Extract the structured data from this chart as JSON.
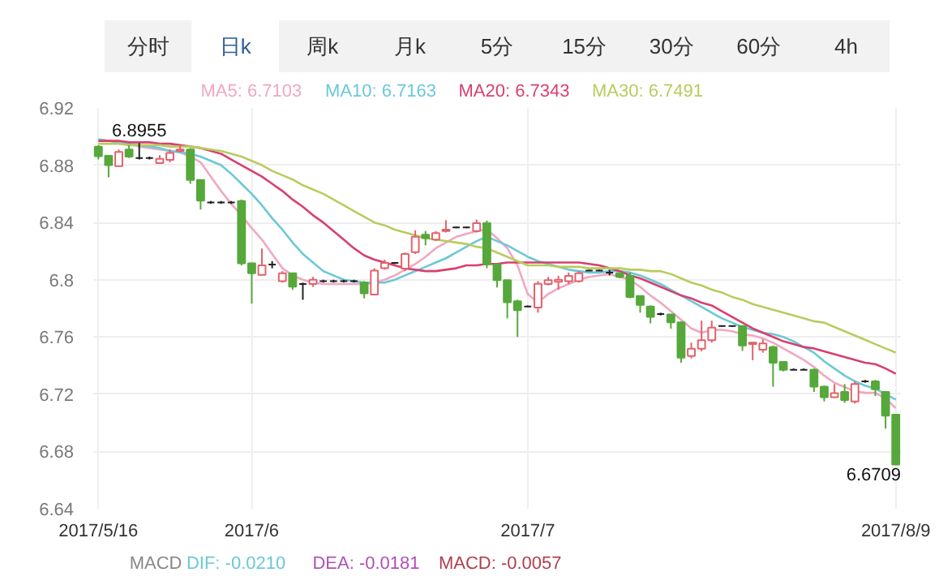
{
  "chart_data": {
    "type": "candlestick",
    "categories": [
      "2017/5/16",
      null,
      null,
      null,
      null,
      null,
      null,
      null,
      null,
      null,
      null,
      null,
      null,
      null,
      null,
      "2017/6",
      null,
      null,
      null,
      null,
      null,
      null,
      null,
      null,
      null,
      null,
      null,
      null,
      null,
      null,
      null,
      null,
      null,
      null,
      null,
      null,
      null,
      null,
      null,
      null,
      null,
      null,
      "2017/7",
      null,
      null,
      null,
      null,
      null,
      null,
      null,
      null,
      null,
      null,
      null,
      null,
      null,
      null,
      null,
      null,
      null,
      null,
      null,
      null,
      null,
      null,
      null,
      null,
      null,
      null,
      null,
      null,
      null,
      null,
      null,
      null,
      null,
      null,
      null,
      "2017/8/9"
    ],
    "ohlc": [
      [
        6.8929,
        6.894,
        6.884,
        6.8863
      ],
      [
        6.8866,
        6.887,
        6.8715,
        6.88
      ],
      [
        6.8793,
        6.891,
        6.879,
        6.8892
      ],
      [
        6.891,
        6.894,
        6.885,
        6.886
      ],
      [
        6.885,
        6.8955,
        6.884,
        6.885
      ],
      [
        6.885,
        6.886,
        6.884,
        6.885
      ],
      [
        6.8815,
        6.887,
        6.881,
        6.8844
      ],
      [
        6.8837,
        6.891,
        6.882,
        6.8885
      ],
      [
        6.89,
        6.894,
        6.889,
        6.891
      ],
      [
        6.891,
        6.892,
        6.867,
        6.8697
      ],
      [
        6.8697,
        6.87,
        6.849,
        6.8553
      ],
      [
        6.854,
        6.855,
        6.853,
        6.854
      ],
      [
        6.854,
        6.855,
        6.853,
        6.854
      ],
      [
        6.854,
        6.855,
        6.853,
        6.854
      ],
      [
        6.855,
        6.856,
        6.81,
        6.8115
      ],
      [
        6.8115,
        6.812,
        6.7833,
        6.8045
      ],
      [
        6.8034,
        6.8218,
        6.803,
        6.81
      ],
      [
        6.8106,
        6.813,
        6.808,
        6.8106
      ],
      [
        6.799,
        6.806,
        6.798,
        6.8045
      ],
      [
        6.8045,
        6.805,
        6.793,
        6.7952
      ],
      [
        6.797,
        6.798,
        6.786,
        6.797
      ],
      [
        6.797,
        6.802,
        6.795,
        6.8
      ],
      [
        6.799,
        6.8,
        6.798,
        6.799
      ],
      [
        6.799,
        6.8,
        6.798,
        6.799
      ],
      [
        6.799,
        6.8,
        6.798,
        6.799
      ],
      [
        6.799,
        6.8,
        6.798,
        6.799
      ],
      [
        6.798,
        6.799,
        6.787,
        6.7905
      ],
      [
        6.7897,
        6.808,
        6.789,
        6.8063
      ],
      [
        6.808,
        6.814,
        6.807,
        6.8117
      ],
      [
        6.8118,
        6.812,
        6.811,
        6.8118
      ],
      [
        6.8078,
        6.819,
        6.806,
        6.818
      ],
      [
        6.8193,
        6.8345,
        6.818,
        6.83
      ],
      [
        6.8315,
        6.834,
        6.824,
        6.829
      ],
      [
        6.828,
        6.834,
        6.827,
        6.8326
      ],
      [
        6.834,
        6.8416,
        6.833,
        6.835
      ],
      [
        6.8365,
        6.837,
        6.836,
        6.8365
      ],
      [
        6.8365,
        6.837,
        6.836,
        6.8365
      ],
      [
        6.834,
        6.842,
        6.833,
        6.8395
      ],
      [
        6.8395,
        6.8413,
        6.808,
        6.8108
      ],
      [
        6.8108,
        6.811,
        6.7946,
        6.7997
      ],
      [
        6.7997,
        6.8,
        6.773,
        6.7842
      ],
      [
        6.785,
        6.786,
        6.76,
        6.7787
      ],
      [
        6.7813,
        6.782,
        6.781,
        6.7813
      ],
      [
        6.7806,
        6.799,
        6.777,
        6.7971
      ],
      [
        6.797,
        6.802,
        6.796,
        6.7997
      ],
      [
        6.7985,
        6.8027,
        6.793,
        6.8
      ],
      [
        6.799,
        6.805,
        6.797,
        6.8027
      ],
      [
        6.799,
        6.806,
        6.798,
        6.8045
      ],
      [
        6.8063,
        6.807,
        6.806,
        6.8063
      ],
      [
        6.8063,
        6.807,
        6.806,
        6.8063
      ],
      [
        6.805,
        6.807,
        6.803,
        6.805
      ],
      [
        6.8045,
        6.805,
        6.801,
        6.802
      ],
      [
        6.8027,
        6.805,
        6.787,
        6.788
      ],
      [
        6.7887,
        6.789,
        6.777,
        6.7824
      ],
      [
        6.7813,
        6.782,
        6.7695,
        6.774
      ],
      [
        6.7761,
        6.777,
        6.775,
        6.7761
      ],
      [
        6.7758,
        6.776,
        6.7658,
        6.7702
      ],
      [
        6.7702,
        6.771,
        6.742,
        6.7456
      ],
      [
        6.7467,
        6.756,
        6.745,
        6.7518
      ],
      [
        6.7518,
        6.7714,
        6.75,
        6.7577
      ],
      [
        6.7577,
        6.7714,
        6.756,
        6.7666
      ],
      [
        6.7677,
        6.768,
        6.767,
        6.7677
      ],
      [
        6.7677,
        6.768,
        6.767,
        6.7677
      ],
      [
        6.7677,
        6.768,
        6.7503,
        6.754
      ],
      [
        6.755,
        6.7566,
        6.7437,
        6.756
      ],
      [
        6.7511,
        6.7584,
        6.749,
        6.7555
      ],
      [
        6.753,
        6.754,
        6.7253,
        6.742
      ],
      [
        6.7426,
        6.743,
        6.736,
        6.7371
      ],
      [
        6.7371,
        6.738,
        6.737,
        6.7371
      ],
      [
        6.7371,
        6.738,
        6.737,
        6.7371
      ],
      [
        6.7371,
        6.738,
        6.7216,
        6.7253
      ],
      [
        6.7253,
        6.726,
        6.715,
        6.718
      ],
      [
        6.7179,
        6.7271,
        6.7175,
        6.7208
      ],
      [
        6.7216,
        6.7271,
        6.714,
        6.716
      ],
      [
        6.715,
        6.729,
        6.7135,
        6.7271
      ],
      [
        6.729,
        6.73,
        6.728,
        6.729
      ],
      [
        6.729,
        6.73,
        6.7187,
        6.7235
      ],
      [
        6.7216,
        6.722,
        6.696,
        6.705
      ],
      [
        6.7058,
        6.706,
        6.6709,
        6.6709
      ]
    ],
    "colors": [
      "#56a83b",
      "#56a83b",
      "#e2626c",
      "#56a83b",
      "#222222",
      "#222222",
      "#e2626c",
      "#e2626c",
      "#e2626c",
      "#56a83b",
      "#56a83b",
      "#222222",
      "#222222",
      "#222222",
      "#56a83b",
      "#56a83b",
      "#e2626c",
      "#222222",
      "#e2626c",
      "#56a83b",
      "#222222",
      "#e2626c",
      "#222222",
      "#222222",
      "#222222",
      "#222222",
      "#56a83b",
      "#e2626c",
      "#e2626c",
      "#222222",
      "#e2626c",
      "#e2626c",
      "#56a83b",
      "#e2626c",
      "#e2626c",
      "#222222",
      "#222222",
      "#e2626c",
      "#56a83b",
      "#56a83b",
      "#56a83b",
      "#56a83b",
      "#222222",
      "#e2626c",
      "#e2626c",
      "#e2626c",
      "#e2626c",
      "#e2626c",
      "#222222",
      "#222222",
      "#222222",
      "#56a83b",
      "#56a83b",
      "#56a83b",
      "#56a83b",
      "#222222",
      "#56a83b",
      "#56a83b",
      "#e2626c",
      "#e2626c",
      "#e2626c",
      "#222222",
      "#222222",
      "#56a83b",
      "#e2626c",
      "#e2626c",
      "#56a83b",
      "#56a83b",
      "#222222",
      "#222222",
      "#56a83b",
      "#56a83b",
      "#e2626c",
      "#56a83b",
      "#e2626c",
      "#222222",
      "#56a83b",
      "#56a83b",
      "#56a83b"
    ],
    "series": [
      {
        "type": "line",
        "name": "MA5: 6.7103",
        "color": "#f0a8c0",
        "values": [
          6.898,
          6.897,
          6.896,
          6.895,
          6.893,
          6.892,
          6.891,
          6.89,
          6.889,
          6.886,
          6.882,
          6.872,
          6.862,
          6.853,
          6.845,
          6.836,
          6.828,
          6.818,
          6.808,
          6.803,
          6.8,
          6.798,
          6.797,
          6.797,
          6.797,
          6.797,
          6.797,
          6.798,
          6.8,
          6.803,
          6.807,
          6.811,
          6.816,
          6.822,
          6.826,
          6.83,
          6.832,
          6.834,
          6.835,
          6.829,
          6.822,
          6.81,
          6.79,
          6.784,
          6.79,
          6.794,
          6.797,
          6.8,
          6.802,
          6.803,
          6.804,
          6.802,
          6.8,
          6.795,
          6.789,
          6.784,
          6.778,
          6.772,
          6.766,
          6.763,
          6.765,
          6.765,
          6.764,
          6.762,
          6.761,
          6.759,
          6.756,
          6.752,
          6.748,
          6.744,
          6.739,
          6.733,
          6.728,
          6.725,
          6.722,
          6.721,
          6.721,
          6.717,
          6.7103
        ]
      },
      {
        "type": "line",
        "name": "MA10: 6.7163",
        "color": "#6cc8d8",
        "values": [
          6.898,
          6.897,
          6.896,
          6.895,
          6.894,
          6.893,
          6.892,
          6.89,
          6.889,
          6.888,
          6.886,
          6.883,
          6.88,
          6.874,
          6.867,
          6.86,
          6.852,
          6.843,
          6.835,
          6.826,
          6.818,
          6.812,
          6.806,
          6.803,
          6.8,
          6.799,
          6.798,
          6.798,
          6.798,
          6.8,
          6.803,
          6.806,
          6.809,
          6.812,
          6.815,
          6.819,
          6.823,
          6.827,
          6.83,
          6.827,
          6.824,
          6.82,
          6.816,
          6.813,
          6.811,
          6.809,
          6.807,
          6.806,
          6.805,
          6.805,
          6.806,
          6.806,
          6.805,
          6.803,
          6.8,
          6.797,
          6.793,
          6.789,
          6.785,
          6.781,
          6.777,
          6.773,
          6.77,
          6.767,
          6.765,
          6.763,
          6.762,
          6.76,
          6.757,
          6.753,
          6.749,
          6.743,
          6.738,
          6.733,
          6.729,
          6.726,
          6.724,
          6.72,
          6.7163
        ]
      },
      {
        "type": "line",
        "name": "MA20: 6.7343",
        "color": "#d8406e",
        "values": [
          6.897,
          6.897,
          6.897,
          6.896,
          6.896,
          6.896,
          6.895,
          6.895,
          6.894,
          6.893,
          6.892,
          6.89,
          6.888,
          6.884,
          6.88,
          6.876,
          6.872,
          6.867,
          6.862,
          6.856,
          6.851,
          6.845,
          6.84,
          6.834,
          6.828,
          6.822,
          6.817,
          6.814,
          6.812,
          6.81,
          6.808,
          6.807,
          6.806,
          6.806,
          6.807,
          6.808,
          6.81,
          6.81,
          6.811,
          6.811,
          6.812,
          6.812,
          6.812,
          6.812,
          6.812,
          6.812,
          6.812,
          6.812,
          6.811,
          6.81,
          6.808,
          6.806,
          6.803,
          6.801,
          6.798,
          6.795,
          6.792,
          6.789,
          6.787,
          6.784,
          6.782,
          6.778,
          6.774,
          6.77,
          6.766,
          6.763,
          6.76,
          6.757,
          6.755,
          6.753,
          6.752,
          6.75,
          6.748,
          6.746,
          6.744,
          6.742,
          6.741,
          6.738,
          6.7343
        ]
      },
      {
        "type": "line",
        "name": "MA30: 6.7491",
        "color": "#b8cc60",
        "values": [
          6.895,
          6.895,
          6.895,
          6.894,
          6.894,
          6.894,
          6.894,
          6.893,
          6.893,
          6.893,
          6.892,
          6.891,
          6.89,
          6.888,
          6.886,
          6.883,
          6.88,
          6.876,
          6.873,
          6.87,
          6.866,
          6.863,
          6.86,
          6.856,
          6.852,
          6.848,
          6.844,
          6.84,
          6.838,
          6.835,
          6.833,
          6.831,
          6.829,
          6.828,
          6.827,
          6.826,
          6.825,
          6.823,
          6.822,
          6.819,
          6.816,
          6.813,
          6.81,
          6.81,
          6.81,
          6.809,
          6.809,
          6.809,
          6.808,
          6.808,
          6.808,
          6.808,
          6.807,
          6.807,
          6.806,
          6.806,
          6.804,
          6.801,
          6.798,
          6.796,
          6.793,
          6.791,
          6.788,
          6.786,
          6.783,
          6.781,
          6.779,
          6.777,
          6.775,
          6.773,
          6.771,
          6.77,
          6.767,
          6.764,
          6.761,
          6.758,
          6.755,
          6.752,
          6.7491
        ]
      }
    ],
    "ylim": [
      6.64,
      6.92
    ],
    "yticks": [
      6.64,
      6.68,
      6.72,
      6.76,
      6.8,
      6.84,
      6.88,
      6.92
    ],
    "grid": true,
    "annotations": [
      "分时",
      "日k",
      "周k",
      "月k",
      "5分",
      "15分",
      "30分",
      "60分",
      "4h",
      "MACD",
      "DIF: -0.0210",
      "DEA: -0.0181",
      "MACD: -0.0057",
      {
        "text": "6.8955",
        "y": 6.8955
      },
      "6.6709"
    ]
  }
}
